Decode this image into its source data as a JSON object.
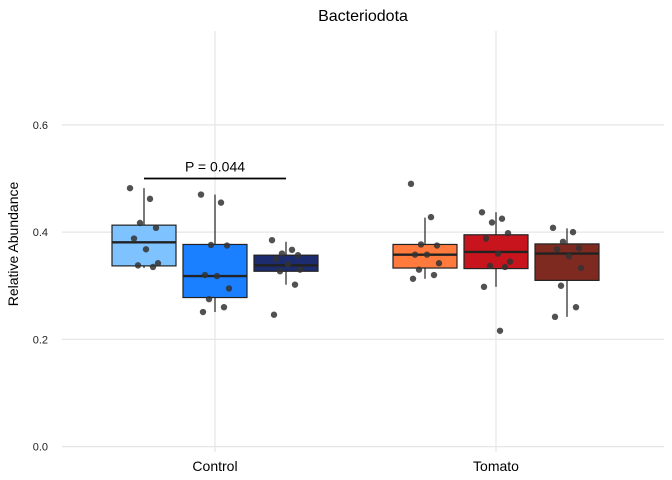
{
  "chart_data": {
    "type": "box",
    "title": "Bacteriodota",
    "xlabel": "",
    "ylabel": "Relative Abundance",
    "ylim": [
      -0.01,
      0.775
    ],
    "y_ticks": [
      0.0,
      0.2,
      0.4,
      0.6
    ],
    "y_tick_labels": [
      "0.0",
      "0.2",
      "0.4",
      "0.6"
    ],
    "categories": [
      "Control",
      "Tomato"
    ],
    "grid": true,
    "legend": "none",
    "groups": [
      {
        "category": "Control",
        "boxes": [
          {
            "color": "#7ec3ff",
            "q1": 0.337,
            "median": 0.381,
            "q3": 0.413,
            "whisker_low": 0.333,
            "whisker_high": 0.482,
            "points": [
              0.482,
              0.462,
              0.417,
              0.408,
              0.388,
              0.368,
              0.342,
              0.338,
              0.335
            ]
          },
          {
            "color": "#1a80ff",
            "q1": 0.278,
            "median": 0.318,
            "q3": 0.377,
            "whisker_low": 0.251,
            "whisker_high": 0.47,
            "points": [
              0.47,
              0.455,
              0.376,
              0.375,
              0.32,
              0.318,
              0.295,
              0.275,
              0.26,
              0.251
            ]
          },
          {
            "color": "#1c2c6e",
            "q1": 0.327,
            "median": 0.338,
            "q3": 0.357,
            "whisker_low": 0.302,
            "whisker_high": 0.382,
            "points": [
              0.385,
              0.367,
              0.36,
              0.357,
              0.35,
              0.34,
              0.33,
              0.327,
              0.302,
              0.246
            ]
          }
        ]
      },
      {
        "category": "Tomato",
        "boxes": [
          {
            "color": "#ff7a3c",
            "q1": 0.333,
            "median": 0.358,
            "q3": 0.377,
            "whisker_low": 0.313,
            "whisker_high": 0.427,
            "points": [
              0.49,
              0.428,
              0.377,
              0.375,
              0.358,
              0.358,
              0.342,
              0.33,
              0.32,
              0.313
            ]
          },
          {
            "color": "#c8151d",
            "q1": 0.332,
            "median": 0.363,
            "q3": 0.395,
            "whisker_low": 0.298,
            "whisker_high": 0.437,
            "points": [
              0.437,
              0.425,
              0.418,
              0.398,
              0.388,
              0.36,
              0.345,
              0.337,
              0.335,
              0.298,
              0.216
            ]
          },
          {
            "color": "#7e2a20",
            "q1": 0.31,
            "median": 0.36,
            "q3": 0.378,
            "whisker_low": 0.242,
            "whisker_high": 0.407,
            "points": [
              0.408,
              0.4,
              0.382,
              0.37,
              0.368,
              0.355,
              0.333,
              0.3,
              0.26,
              0.242
            ]
          }
        ]
      }
    ],
    "annotations": [
      {
        "text": "P = 0.044",
        "group": "Control",
        "from_box": 0,
        "to_box": 2,
        "y": 0.5
      }
    ]
  }
}
